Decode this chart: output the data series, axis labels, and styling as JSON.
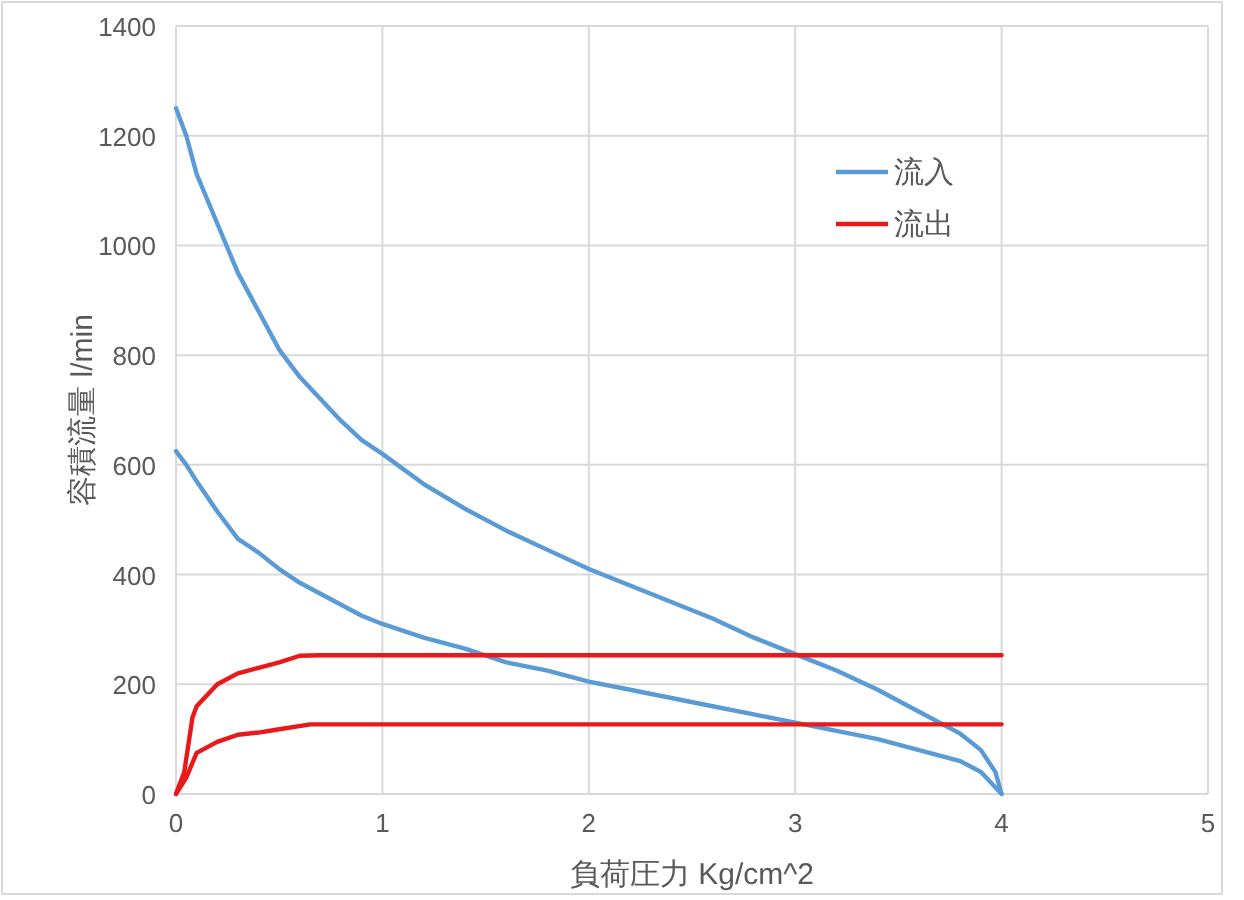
{
  "chart_data": {
    "type": "line",
    "xlabel": "負荷圧力  Kg/cm^2",
    "ylabel": "容積流量  l/min",
    "xlim": [
      0,
      5
    ],
    "xticks": [
      0,
      1,
      2,
      3,
      4,
      5
    ],
    "ylim": [
      0,
      1400
    ],
    "yticks": [
      0,
      200,
      400,
      600,
      800,
      1000,
      1200,
      1400
    ],
    "grid": true,
    "legend": "top right",
    "marker": "none",
    "line_style": "solid",
    "series": [
      {
        "name": "流入",
        "color": "#5b9bd5",
        "x": [
          0,
          0.05,
          0.1,
          0.2,
          0.3,
          0.4,
          0.5,
          0.6,
          0.7,
          0.8,
          0.9,
          1.0,
          1.2,
          1.4,
          1.6,
          1.8,
          2.0,
          2.2,
          2.4,
          2.6,
          2.8,
          3.0,
          3.2,
          3.4,
          3.6,
          3.8,
          3.9,
          3.97,
          4.0
        ],
        "values": [
          1250,
          1200,
          1130,
          1040,
          950,
          880,
          810,
          760,
          720,
          680,
          645,
          620,
          565,
          520,
          480,
          445,
          410,
          380,
          350,
          320,
          285,
          255,
          225,
          190,
          150,
          110,
          80,
          40,
          0
        ]
      },
      {
        "color": "#5b9bd5",
        "x": [
          0,
          0.05,
          0.1,
          0.2,
          0.3,
          0.4,
          0.5,
          0.6,
          0.7,
          0.8,
          0.9,
          1.0,
          1.2,
          1.4,
          1.6,
          1.8,
          2.0,
          2.2,
          2.4,
          2.6,
          2.8,
          3.0,
          3.2,
          3.4,
          3.6,
          3.8,
          3.9,
          4.0
        ],
        "values": [
          625,
          600,
          570,
          515,
          465,
          440,
          410,
          385,
          365,
          345,
          325,
          310,
          285,
          265,
          240,
          225,
          205,
          190,
          175,
          160,
          145,
          130,
          115,
          100,
          80,
          60,
          40,
          0
        ]
      },
      {
        "name": "流出",
        "color": "#e8191b",
        "x": [
          0,
          0.04,
          0.08,
          0.1,
          0.2,
          0.3,
          0.4,
          0.5,
          0.6,
          0.7,
          4.0
        ],
        "values": [
          0,
          40,
          140,
          160,
          200,
          220,
          230,
          240,
          252,
          253,
          253
        ]
      },
      {
        "color": "#e8191b",
        "x": [
          0,
          0.05,
          0.1,
          0.2,
          0.3,
          0.4,
          0.5,
          0.65,
          4.0
        ],
        "values": [
          0,
          30,
          75,
          95,
          108,
          112,
          118,
          127,
          127
        ]
      }
    ]
  }
}
